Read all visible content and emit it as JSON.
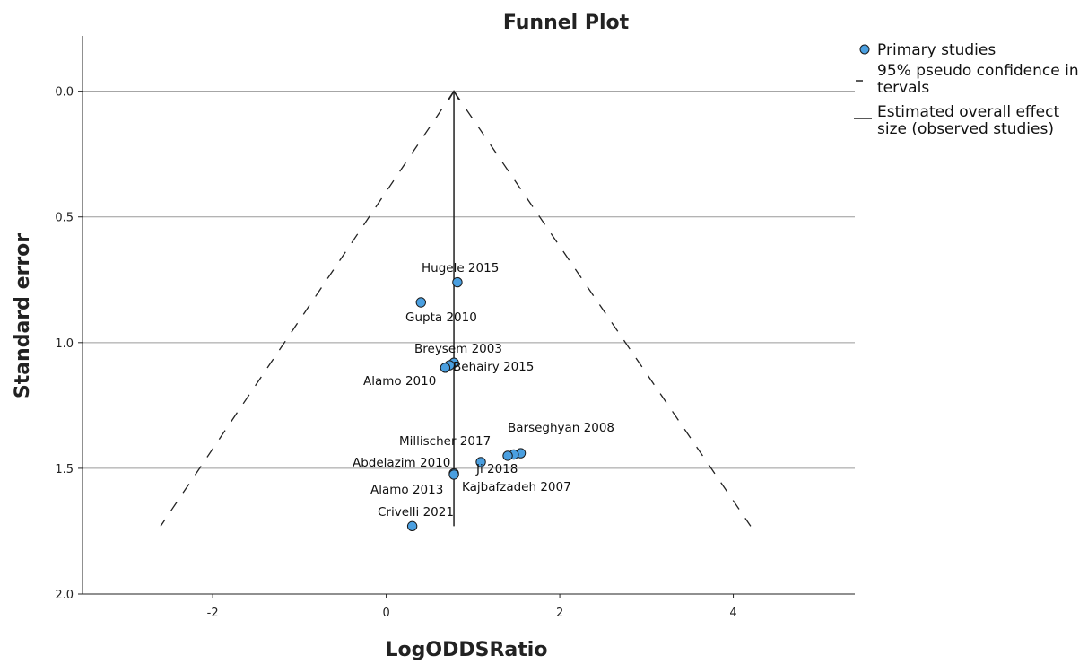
{
  "chart_data": {
    "type": "scatter",
    "title": "Funnel Plot",
    "xlabel": "LogODDSRatio",
    "ylabel": "Standard error",
    "xlim": [
      -3.5,
      5.4
    ],
    "ylim": [
      2.0,
      -0.22
    ],
    "y_reversed": true,
    "xticks": [
      "-2",
      "0",
      "2",
      "4"
    ],
    "yticks": [
      "0.0",
      "0.5",
      "1.0",
      "1.5",
      "2.0"
    ],
    "grid": "horizontal",
    "legend_position": "top-right",
    "legend": [
      {
        "label": "Primary studies",
        "marker": "circle"
      },
      {
        "label": "95% pseudo confidence intervals",
        "marker": "dashed-line"
      },
      {
        "label": "Estimated overall effect size (observed studies)",
        "marker": "solid-line"
      }
    ],
    "overall_effect": 0.78,
    "funnel_lines": {
      "apex": [
        0.78,
        0.0
      ],
      "left_end": [
        -2.6,
        1.73
      ],
      "right_end": [
        4.2,
        1.73
      ]
    },
    "points": [
      {
        "x": 0.82,
        "y": 0.76,
        "label": "Hugele 2015"
      },
      {
        "x": 0.4,
        "y": 0.84,
        "label": "Gupta 2010"
      },
      {
        "x": 0.78,
        "y": 1.08,
        "label": "Breysem 2003"
      },
      {
        "x": 0.73,
        "y": 1.09,
        "label": "Behairy 2015"
      },
      {
        "x": 0.68,
        "y": 1.1,
        "label": "Alamo 2010"
      },
      {
        "x": 1.55,
        "y": 1.44,
        "label": "Barseghyan 2008"
      },
      {
        "x": 1.47,
        "y": 1.445,
        "label": "Millischer 2017"
      },
      {
        "x": 1.4,
        "y": 1.45,
        "label": "Kajbafzadeh 2007"
      },
      {
        "x": 1.09,
        "y": 1.475,
        "label": "Ji 2018"
      },
      {
        "x": 0.78,
        "y": 1.52,
        "label": "Abdelazim 2010"
      },
      {
        "x": 0.78,
        "y": 1.525,
        "label": "Alamo 2013"
      },
      {
        "x": 0.3,
        "y": 1.73,
        "label": "Crivelli 2021"
      }
    ],
    "colors": {
      "marker_fill": "#4a9fe0",
      "marker_stroke": "#1a1a1a",
      "grid": "#9a9a9a",
      "line": "#222222"
    }
  }
}
